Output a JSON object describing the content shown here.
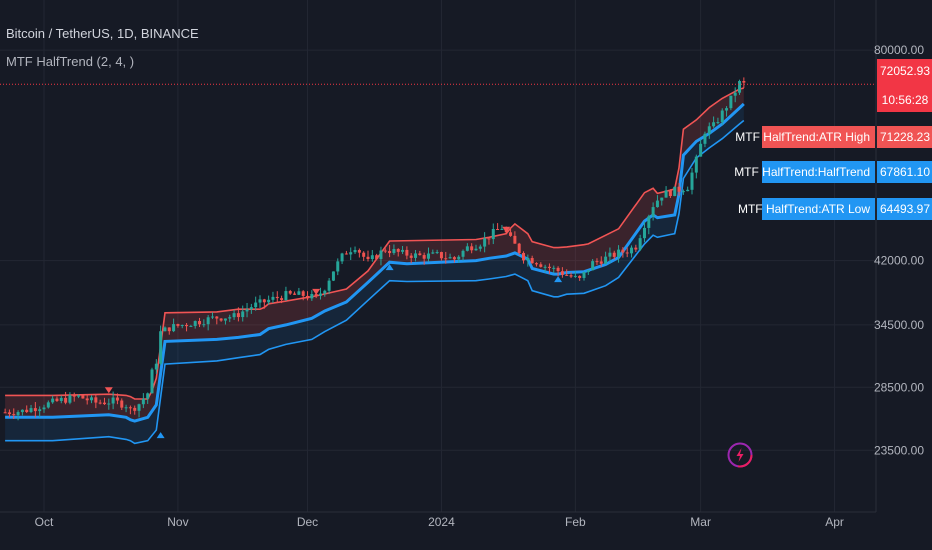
{
  "header": {
    "symbol": "Bitcoin / TetherUS, 1D, BINANCE",
    "indicator": "MTF HalfTrend (2, 4, )"
  },
  "colors": {
    "background": "#161a25",
    "grid": "#232733",
    "up_candle": "#26a69a",
    "down_candle": "#ef5350",
    "atr_high": "#f05454",
    "halftrend": "#2196f3",
    "atr_low": "#2196f3",
    "price_line": "#f23645",
    "label_text": "#ffffff",
    "axis_text": "#b2b5be"
  },
  "chart_data": {
    "type": "line",
    "y_axis": {
      "ticks": [
        23500,
        28500,
        34500,
        42000,
        80000
      ],
      "tick_labels": [
        "23500.00",
        "28500.00",
        "34500.00",
        "42000.00",
        "80000.00"
      ],
      "scale": "log"
    },
    "x_axis": {
      "tick_labels": [
        "Oct",
        "Nov",
        "Dec",
        "2024",
        "Feb",
        "Mar",
        "Apr"
      ],
      "tick_days": [
        0,
        31,
        61,
        92,
        123,
        152,
        183
      ]
    },
    "series": [
      {
        "name": "MTF HalfTrend:ATR High",
        "color": "#f05454",
        "x": [
          -9,
          2,
          15,
          19,
          20,
          21,
          24,
          25,
          26,
          28,
          40,
          45,
          50,
          51,
          52,
          56,
          63,
          70,
          75,
          80,
          100,
          103,
          107,
          108,
          109,
          112,
          113,
          118,
          119,
          121,
          125,
          126,
          133,
          139,
          141,
          142,
          145,
          146,
          147,
          148,
          151,
          154,
          157,
          161,
          162
        ],
        "y": [
          27800,
          27800,
          27900,
          27800,
          27700,
          27500,
          27500,
          28200,
          29300,
          35800,
          35900,
          36200,
          36200,
          36400,
          36800,
          37100,
          37700,
          38500,
          40700,
          44600,
          44800,
          45100,
          45600,
          46400,
          47000,
          45600,
          44500,
          43700,
          43700,
          43800,
          44100,
          44200,
          46300,
          51700,
          52400,
          51600,
          52100,
          52300,
          55800,
          62800,
          64600,
          67100,
          69000,
          71000,
          71228.23
        ]
      },
      {
        "name": "MTF HalfTrend:HalfTrend",
        "color": "#2196f3",
        "x": [
          -9,
          2,
          15,
          19,
          20,
          21,
          24,
          26,
          28,
          40,
          45,
          50,
          52,
          56,
          62,
          65,
          70,
          75,
          80,
          84,
          100,
          103,
          107,
          109,
          112,
          113,
          118,
          119,
          121,
          125,
          130,
          133,
          139,
          141,
          142,
          145,
          146,
          147,
          148,
          151,
          154,
          157,
          161,
          162
        ],
        "y": [
          26000,
          26000,
          26200,
          26000,
          25800,
          25700,
          26000,
          27000,
          32800,
          33000,
          33200,
          33500,
          34100,
          34500,
          35200,
          36000,
          37000,
          39300,
          41800,
          41600,
          42000,
          42300,
          42600,
          43000,
          42200,
          41000,
          40300,
          40300,
          40500,
          40600,
          41500,
          42400,
          47400,
          48300,
          47900,
          48200,
          48300,
          51500,
          58000,
          60500,
          62000,
          63800,
          67000,
          67861.1
        ]
      },
      {
        "name": "MTF HalfTrend:ATR Low",
        "color": "#2196f3",
        "x": [
          -9,
          2,
          15,
          19,
          20,
          21,
          24,
          26,
          28,
          40,
          45,
          50,
          52,
          56,
          62,
          65,
          70,
          75,
          80,
          84,
          100,
          103,
          107,
          109,
          112,
          113,
          118,
          119,
          121,
          125,
          130,
          133,
          139,
          141,
          142,
          145,
          146,
          147,
          148,
          151,
          154,
          157,
          161,
          162
        ],
        "y": [
          24200,
          24200,
          24500,
          24300,
          24200,
          24000,
          24200,
          25000,
          30600,
          30900,
          31200,
          31500,
          32000,
          32500,
          33000,
          33800,
          35000,
          37200,
          39500,
          39400,
          39500,
          39700,
          40000,
          40300,
          39500,
          38300,
          37600,
          37600,
          37900,
          38000,
          38900,
          39900,
          44200,
          45400,
          45100,
          45500,
          45600,
          48500,
          54000,
          57500,
          59300,
          61000,
          63800,
          64493.97
        ]
      },
      {
        "name": "Price",
        "color": "#26a69a",
        "x": [
          -9,
          -5,
          0,
          4,
          8,
          12,
          16,
          19,
          20,
          22,
          24,
          25,
          26,
          27,
          29,
          32,
          36,
          40,
          44,
          48,
          52,
          56,
          60,
          63,
          65,
          67,
          69,
          70,
          72,
          75,
          79,
          83,
          87,
          91,
          95,
          98,
          101,
          104,
          106,
          108,
          111,
          114,
          116,
          119,
          121,
          124,
          127,
          130,
          133,
          135,
          137,
          139,
          141,
          143,
          145,
          147,
          149,
          151,
          153,
          155,
          157,
          159,
          161,
          162
        ],
        "y": [
          26400,
          26500,
          27000,
          27400,
          27700,
          27200,
          27300,
          27000,
          26600,
          27100,
          28000,
          29800,
          30900,
          33700,
          34200,
          34500,
          34900,
          35300,
          35400,
          36500,
          37200,
          37800,
          37800,
          37400,
          38700,
          40800,
          42500,
          43100,
          43900,
          41800,
          43500,
          42900,
          42600,
          42700,
          42200,
          43700,
          44300,
          45700,
          46500,
          44800,
          42500,
          41900,
          41300,
          40700,
          40200,
          39600,
          41700,
          42300,
          43000,
          43300,
          43900,
          47000,
          49800,
          51400,
          51800,
          52200,
          52700,
          57100,
          62500,
          63400,
          66000,
          68800,
          72300,
          72052.93
        ]
      }
    ],
    "markers": [
      {
        "type": "sell",
        "x": 15,
        "y": 27900
      },
      {
        "type": "buy",
        "x": 27,
        "y": 25000
      },
      {
        "type": "sell",
        "x": 63,
        "y": 37700
      },
      {
        "type": "buy",
        "x": 80,
        "y": 41800
      },
      {
        "type": "sell",
        "x": 107,
        "y": 45600
      },
      {
        "type": "buy",
        "x": 119,
        "y": 40300
      }
    ],
    "last_price": 72052.93,
    "countdown": "10:56:28"
  },
  "labels": {
    "atr_high_name": "MTF HalfTrend:ATR High",
    "atr_high_value": "71228.23",
    "halftrend_name": "MTF HalfTrend:HalfTrend",
    "halftrend_value": "67861.10",
    "atr_low_name": "MTF HalfTrend:ATR Low",
    "atr_low_value": "64493.97",
    "last_price": "72052.93",
    "countdown": "10:56:28"
  },
  "icons": {
    "brand": "lightning-bolt-icon"
  }
}
